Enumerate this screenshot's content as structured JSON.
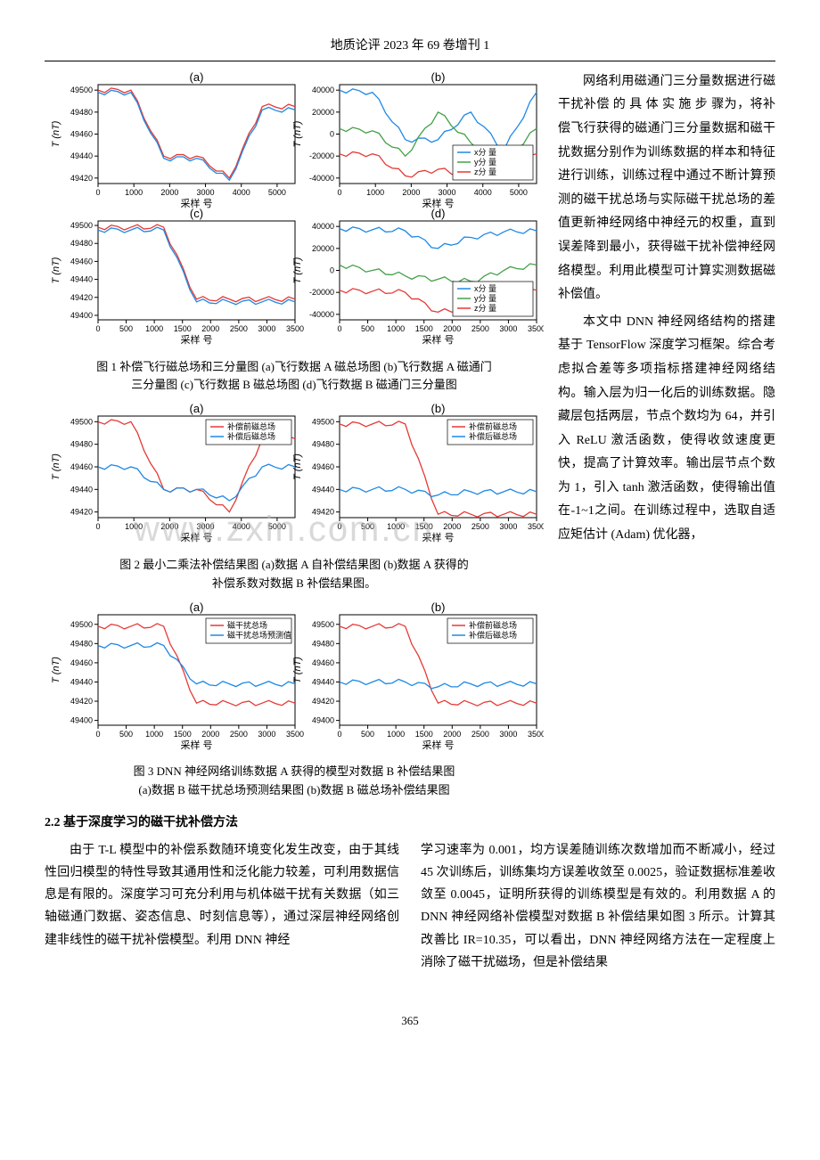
{
  "header": "地质论评 2023 年 69 卷增刊 1",
  "pageNumber": "365",
  "watermark": "www.zxin.com.cn",
  "fig1": {
    "panels": {
      "a": {
        "label": "(a)",
        "type": "line",
        "xlabel": "采样 号",
        "ylabel": "T (nT)",
        "xlim": [
          0,
          5500
        ],
        "xticks": [
          0,
          1000,
          2000,
          3000,
          4000,
          5000
        ],
        "ylim": [
          49415,
          49505
        ],
        "yticks": [
          49420,
          49440,
          49460,
          49480,
          49500
        ],
        "series": [
          {
            "color": "#e53935",
            "y_segments": [
              49500,
              49500,
              49440,
              49440,
              49420,
              49485,
              49485
            ]
          },
          {
            "color": "#1e88e5",
            "y_segments": [
              49498,
              49498,
              49438,
              49438,
              49418,
              49482,
              49482
            ]
          }
        ],
        "grid_color": "#cccccc",
        "background": "#ffffff"
      },
      "b": {
        "label": "(b)",
        "type": "line",
        "xlabel": "采样 号",
        "ylabel": "T (nT)",
        "xlim": [
          0,
          5500
        ],
        "xticks": [
          0,
          1000,
          2000,
          3000,
          4000,
          5000
        ],
        "ylim": [
          -45000,
          45000
        ],
        "yticks": [
          -40000,
          -20000,
          0,
          20000,
          40000
        ],
        "legend_items": [
          {
            "label": "x分 量",
            "color": "#1e88e5"
          },
          {
            "label": "y分 量",
            "color": "#43a047"
          },
          {
            "label": "z分 量",
            "color": "#e53935"
          }
        ],
        "series": [
          {
            "color": "#1e88e5",
            "y_segments": [
              40000,
              38000,
              -5000,
              -5000,
              20000,
              -15000,
              38000
            ]
          },
          {
            "color": "#43a047",
            "y_segments": [
              5000,
              3000,
              -20000,
              20000,
              -8000,
              -25000,
              5000
            ]
          },
          {
            "color": "#e53935",
            "y_segments": [
              -18000,
              -18000,
              -38000,
              -32000,
              -40000,
              -35000,
              -18000
            ]
          }
        ]
      },
      "c": {
        "label": "(c)",
        "type": "line",
        "xlabel": "采样 号",
        "ylabel": "T (nT)",
        "xlim": [
          0,
          3500
        ],
        "xticks": [
          0,
          500,
          1000,
          1500,
          2000,
          2500,
          3000,
          3500
        ],
        "ylim": [
          49395,
          49505
        ],
        "yticks": [
          49400,
          49420,
          49440,
          49460,
          49480,
          49500
        ],
        "series": [
          {
            "color": "#e53935",
            "y_segments": [
              49498,
              49498,
              49498,
              49418,
              49418,
              49418,
              49418
            ]
          },
          {
            "color": "#1e88e5",
            "y_segments": [
              49495,
              49495,
              49495,
              49415,
              49415,
              49415,
              49415
            ]
          }
        ]
      },
      "d": {
        "label": "(d)",
        "type": "line",
        "xlabel": "采样 号",
        "ylabel": "T (nT)",
        "xlim": [
          0,
          3500
        ],
        "xticks": [
          0,
          500,
          1000,
          1500,
          2000,
          2500,
          3000,
          3500
        ],
        "ylim": [
          -45000,
          45000
        ],
        "yticks": [
          -40000,
          -20000,
          0,
          20000,
          40000
        ],
        "legend_items": [
          {
            "label": "x分 量",
            "color": "#1e88e5"
          },
          {
            "label": "y分 量",
            "color": "#43a047"
          },
          {
            "label": "z分 量",
            "color": "#e53935"
          }
        ],
        "series": [
          {
            "color": "#1e88e5",
            "y_segments": [
              38000,
              37000,
              36000,
              20000,
              30000,
              35000,
              36000
            ]
          },
          {
            "color": "#43a047",
            "y_segments": [
              5000,
              0,
              -5000,
              -8000,
              -10000,
              0,
              5000
            ]
          },
          {
            "color": "#e53935",
            "y_segments": [
              -18000,
              -19000,
              -20000,
              -38000,
              -35000,
              -22000,
              -18000
            ]
          }
        ]
      }
    },
    "caption_line1": "图 1  补偿飞行磁总场和三分量图 (a)飞行数据 A 磁总场图 (b)飞行数据 A 磁通门",
    "caption_line2": "三分量图 (c)飞行数据 B 磁总场图 (d)飞行数据 B 磁通门三分量图"
  },
  "fig2": {
    "panels": {
      "a": {
        "label": "(a)",
        "xlabel": "采样 号",
        "ylabel": "T (nT)",
        "xlim": [
          0,
          5500
        ],
        "xticks": [
          0,
          1000,
          2000,
          3000,
          4000,
          5000
        ],
        "ylim": [
          49415,
          49505
        ],
        "yticks": [
          49420,
          49440,
          49460,
          49480,
          49500
        ],
        "legend_items": [
          {
            "label": "补偿前磁总场",
            "color": "#e53935"
          },
          {
            "label": "补偿后磁总场",
            "color": "#1e88e5"
          }
        ],
        "series": [
          {
            "color": "#e53935",
            "y_segments": [
              49500,
              49500,
              49440,
              49440,
              49420,
              49485,
              49485
            ]
          },
          {
            "color": "#1e88e5",
            "y_segments": [
              49460,
              49460,
              49440,
              49440,
              49430,
              49460,
              49460
            ]
          }
        ]
      },
      "b": {
        "label": "(b)",
        "xlabel": "采样 号",
        "ylabel": "T (nT)",
        "xlim": [
          0,
          3500
        ],
        "xticks": [
          0,
          500,
          1000,
          1500,
          2000,
          2500,
          3000,
          3500
        ],
        "ylim": [
          49415,
          49505
        ],
        "yticks": [
          49420,
          49440,
          49460,
          49480,
          49500
        ],
        "legend_items": [
          {
            "label": "补偿前磁总场",
            "color": "#e53935"
          },
          {
            "label": "补偿后磁总场",
            "color": "#1e88e5"
          }
        ],
        "series": [
          {
            "color": "#e53935",
            "y_segments": [
              49498,
              49498,
              49498,
              49418,
              49418,
              49418,
              49418
            ]
          },
          {
            "color": "#1e88e5",
            "y_segments": [
              49440,
              49440,
              49440,
              49435,
              49438,
              49438,
              49438
            ]
          }
        ]
      }
    },
    "caption_line1": "图 2  最小二乘法补偿结果图 (a)数据 A 自补偿结果图 (b)数据 A 获得的",
    "caption_line2": "补偿系数对数据 B 补偿结果图。"
  },
  "fig3": {
    "panels": {
      "a": {
        "label": "(a)",
        "xlabel": "采样 号",
        "ylabel": "T (nT)",
        "xlim": [
          0,
          3500
        ],
        "xticks": [
          0,
          500,
          1000,
          1500,
          2000,
          2500,
          3000,
          3500
        ],
        "ylim": [
          49395,
          49510
        ],
        "yticks": [
          49400,
          49420,
          49440,
          49460,
          49480,
          49500
        ],
        "legend_items": [
          {
            "label": "磁干扰总场",
            "color": "#e53935"
          },
          {
            "label": "磁干扰总场预测值",
            "color": "#1e88e5"
          }
        ],
        "series": [
          {
            "color": "#e53935",
            "y_segments": [
              49498,
              49498,
              49498,
              49418,
              49418,
              49418,
              49418
            ]
          },
          {
            "color": "#1e88e5",
            "y_segments": [
              49478,
              49478,
              49478,
              49438,
              49438,
              49438,
              49438
            ]
          }
        ]
      },
      "b": {
        "label": "(b)",
        "xlabel": "采样 号",
        "ylabel": "T (nT)",
        "xlim": [
          0,
          3500
        ],
        "xticks": [
          0,
          500,
          1000,
          1500,
          2000,
          2500,
          3000,
          3500
        ],
        "ylim": [
          49395,
          49510
        ],
        "yticks": [
          49400,
          49420,
          49440,
          49460,
          49480,
          49500
        ],
        "legend_items": [
          {
            "label": "补偿前磁总场",
            "color": "#e53935"
          },
          {
            "label": "补偿后磁总场",
            "color": "#1e88e5"
          }
        ],
        "series": [
          {
            "color": "#e53935",
            "y_segments": [
              49498,
              49498,
              49498,
              49418,
              49418,
              49418,
              49418
            ]
          },
          {
            "color": "#1e88e5",
            "y_segments": [
              49440,
              49440,
              49440,
              49435,
              49438,
              49438,
              49438
            ]
          }
        ]
      }
    },
    "caption_line1": "图 3 DNN 神经网络训练数据 A 获得的模型对数据 B 补偿结果图",
    "caption_line2": "(a)数据 B 磁干扰总场预测结果图 (b)数据 B 磁总场补偿结果图"
  },
  "sideText": {
    "p1": "网络利用磁通门三分量数据进行磁干扰补偿 的 具 体 实 施 步 骤为，将补偿飞行获得的磁通门三分量数据和磁干扰数据分别作为训练数据的样本和特征进行训练，训练过程中通过不断计算预测的磁干扰总场与实际磁干扰总场的差值更新神经网络中神经元的权重，直到误差降到最小，获得磁干扰补偿神经网络模型。利用此模型可计算实测数据磁补偿值。",
    "p2": "本文中 DNN 神经网络结构的搭建基于 TensorFlow 深度学习框架。综合考虑拟合差等多项指标搭建神经网络结构。输入层为归一化后的训练数据。隐藏层包括两层，节点个数均为 64，并引入 ReLU 激活函数，使得收敛速度更快，提高了计算效率。输出层节点个数为 1，引入 tanh 激活函数，使得输出值在-1~1之间。在训练过程中，选取自适应矩估计 (Adam) 优化器，"
  },
  "sectionHeading": "2.2   基于深度学习的磁干扰补偿方法",
  "bottomCol1": "由于 T-L 模型中的补偿系数随环境变化发生改变，由于其线性回归模型的特性导致其通用性和泛化能力较差，可利用数据信息是有限的。深度学习可充分利用与机体磁干扰有关数据（如三轴磁通门数据、姿态信息、时刻信息等），通过深层神经网络创建非线性的磁干扰补偿模型。利用 DNN 神经",
  "bottomCol2": "学习速率为 0.001，均方误差随训练次数增加而不断减小，经过 45 次训练后，训练集均方误差收敛至 0.0025，验证数据标准差收敛至 0.0045，证明所获得的训练模型是有效的。利用数据 A 的 DNN 神经网络补偿模型对数据 B 补偿结果如图 3 所示。计算其改善比 IR=10.35，可以看出，DNN 神经网络方法在一定程度上消除了磁干扰磁场，但是补偿结果"
}
